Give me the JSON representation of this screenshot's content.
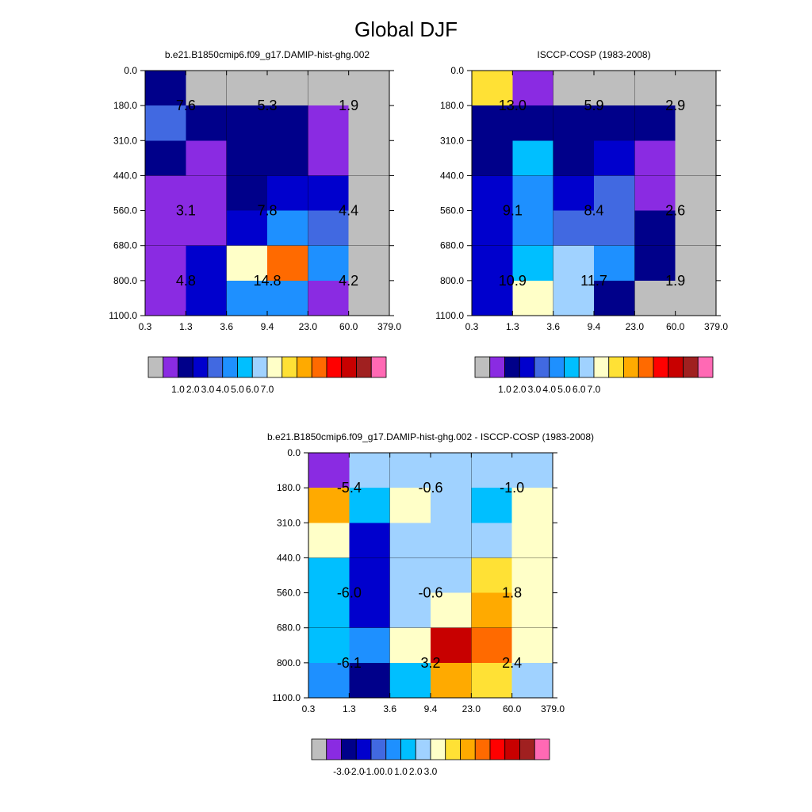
{
  "figure": {
    "title": "Global DJF"
  },
  "chart_data": [
    {
      "type": "heatmap",
      "title": "b.e21.B1850cmip6.f09_g17.DAMIP-hist-ghg.002",
      "x_tick_labels": [
        "0.3",
        "1.3",
        "3.6",
        "9.4",
        "23.0",
        "60.0",
        "379.0"
      ],
      "y_tick_labels": [
        "0.0",
        "180.0",
        "310.0",
        "440.0",
        "560.0",
        "680.0",
        "800.0",
        "1100.0"
      ],
      "cells": [
        [
          "#00008a",
          "#bebebe",
          "#bebebe",
          "#bebebe",
          "#bebebe",
          "#bebebe"
        ],
        [
          "#4169e1",
          "#00008a",
          "#00008a",
          "#00008a",
          "#8a2be2",
          "#bebebe"
        ],
        [
          "#00008a",
          "#8a2be2",
          "#00008a",
          "#00008a",
          "#8a2be2",
          "#bebebe"
        ],
        [
          "#8a2be2",
          "#8a2be2",
          "#00008a",
          "#0000cd",
          "#0000cd",
          "#bebebe"
        ],
        [
          "#8a2be2",
          "#8a2be2",
          "#0000cd",
          "#1e90ff",
          "#4169e1",
          "#bebebe"
        ],
        [
          "#8a2be2",
          "#0000cd",
          "#ffffc8",
          "#ff6a00",
          "#1e90ff",
          "#bebebe"
        ],
        [
          "#8a2be2",
          "#0000cd",
          "#1e90ff",
          "#1e90ff",
          "#8a2be2",
          "#bebebe"
        ]
      ],
      "annotations": [
        {
          "text": "7.6",
          "x": 1.3,
          "y": 180.0
        },
        {
          "text": "5.3",
          "x": 9.4,
          "y": 180.0
        },
        {
          "text": "1.9",
          "x": 60.0,
          "y": 180.0
        },
        {
          "text": "3.1",
          "x": 1.3,
          "y": 560.0
        },
        {
          "text": "7.8",
          "x": 9.4,
          "y": 560.0
        },
        {
          "text": "4.4",
          "x": 60.0,
          "y": 560.0
        },
        {
          "text": "4.8",
          "x": 1.3,
          "y": 800.0
        },
        {
          "text": "14.8",
          "x": 9.4,
          "y": 800.0
        },
        {
          "text": "4.2",
          "x": 60.0,
          "y": 800.0
        }
      ],
      "colorbar": {
        "colors": [
          "#bebebe",
          "#8a2be2",
          "#00008a",
          "#0000cd",
          "#4169e1",
          "#1e90ff",
          "#00bfff",
          "#a0d2ff",
          "#ffffc8",
          "#ffe135",
          "#ffaa00",
          "#ff6a00",
          "#ff0000",
          "#c80000",
          "#a02020",
          "#ff69b4"
        ],
        "labels": [
          "1.0",
          "2.0",
          "3.0",
          "4.0",
          "5.0",
          "6.0",
          "7.0"
        ]
      }
    },
    {
      "type": "heatmap",
      "title": "ISCCP-COSP (1983-2008)",
      "x_tick_labels": [
        "0.3",
        "1.3",
        "3.6",
        "9.4",
        "23.0",
        "60.0",
        "379.0"
      ],
      "y_tick_labels": [
        "0.0",
        "180.0",
        "310.0",
        "440.0",
        "560.0",
        "680.0",
        "800.0",
        "1100.0"
      ],
      "cells": [
        [
          "#ffe135",
          "#8a2be2",
          "#bebebe",
          "#bebebe",
          "#bebebe",
          "#bebebe"
        ],
        [
          "#00008a",
          "#00008a",
          "#00008a",
          "#00008a",
          "#00008a",
          "#bebebe"
        ],
        [
          "#00008a",
          "#00bfff",
          "#00008a",
          "#0000cd",
          "#8a2be2",
          "#bebebe"
        ],
        [
          "#0000cd",
          "#1e90ff",
          "#0000cd",
          "#4169e1",
          "#8a2be2",
          "#bebebe"
        ],
        [
          "#0000cd",
          "#1e90ff",
          "#4169e1",
          "#4169e1",
          "#00008a",
          "#bebebe"
        ],
        [
          "#0000cd",
          "#00bfff",
          "#a0d2ff",
          "#1e90ff",
          "#00008a",
          "#bebebe"
        ],
        [
          "#0000cd",
          "#ffffc8",
          "#a0d2ff",
          "#00008a",
          "#bebebe",
          "#bebebe"
        ]
      ],
      "annotations": [
        {
          "text": "13.0",
          "x": 1.3,
          "y": 180.0
        },
        {
          "text": "5.9",
          "x": 9.4,
          "y": 180.0
        },
        {
          "text": "2.9",
          "x": 60.0,
          "y": 180.0
        },
        {
          "text": "9.1",
          "x": 1.3,
          "y": 560.0
        },
        {
          "text": "8.4",
          "x": 9.4,
          "y": 560.0
        },
        {
          "text": "2.6",
          "x": 60.0,
          "y": 560.0
        },
        {
          "text": "10.9",
          "x": 1.3,
          "y": 800.0
        },
        {
          "text": "11.7",
          "x": 9.4,
          "y": 800.0
        },
        {
          "text": "1.9",
          "x": 60.0,
          "y": 800.0
        }
      ],
      "colorbar": {
        "colors": [
          "#bebebe",
          "#8a2be2",
          "#00008a",
          "#0000cd",
          "#4169e1",
          "#1e90ff",
          "#00bfff",
          "#a0d2ff",
          "#ffffc8",
          "#ffe135",
          "#ffaa00",
          "#ff6a00",
          "#ff0000",
          "#c80000",
          "#a02020",
          "#ff69b4"
        ],
        "labels": [
          "1.0",
          "2.0",
          "3.0",
          "4.0",
          "5.0",
          "6.0",
          "7.0"
        ]
      }
    },
    {
      "type": "heatmap",
      "title": "b.e21.B1850cmip6.f09_g17.DAMIP-hist-ghg.002 - ISCCP-COSP (1983-2008)",
      "x_tick_labels": [
        "0.3",
        "1.3",
        "3.6",
        "9.4",
        "23.0",
        "60.0",
        "379.0"
      ],
      "y_tick_labels": [
        "0.0",
        "180.0",
        "310.0",
        "440.0",
        "560.0",
        "680.0",
        "800.0",
        "1100.0"
      ],
      "cells": [
        [
          "#8a2be2",
          "#a0d2ff",
          "#a0d2ff",
          "#a0d2ff",
          "#a0d2ff",
          "#a0d2ff"
        ],
        [
          "#ffaa00",
          "#00bfff",
          "#ffffc8",
          "#a0d2ff",
          "#00bfff",
          "#ffffc8"
        ],
        [
          "#ffffc8",
          "#0000cd",
          "#a0d2ff",
          "#a0d2ff",
          "#a0d2ff",
          "#ffffc8"
        ],
        [
          "#00bfff",
          "#0000cd",
          "#a0d2ff",
          "#a0d2ff",
          "#ffe135",
          "#ffffc8"
        ],
        [
          "#00bfff",
          "#0000cd",
          "#a0d2ff",
          "#ffffc8",
          "#ffaa00",
          "#ffffc8"
        ],
        [
          "#00bfff",
          "#1e90ff",
          "#ffffc8",
          "#c80000",
          "#ff6a00",
          "#ffffc8"
        ],
        [
          "#1e90ff",
          "#00008a",
          "#00bfff",
          "#ffaa00",
          "#ffe135",
          "#a0d2ff"
        ]
      ],
      "annotations": [
        {
          "text": "-5.4",
          "x": 1.3,
          "y": 180.0
        },
        {
          "text": "-0.6",
          "x": 9.4,
          "y": 180.0
        },
        {
          "text": "-1.0",
          "x": 60.0,
          "y": 180.0
        },
        {
          "text": "-6.0",
          "x": 1.3,
          "y": 560.0
        },
        {
          "text": "-0.6",
          "x": 9.4,
          "y": 560.0
        },
        {
          "text": "1.8",
          "x": 60.0,
          "y": 560.0
        },
        {
          "text": "-6.1",
          "x": 1.3,
          "y": 800.0
        },
        {
          "text": "3.2",
          "x": 9.4,
          "y": 800.0
        },
        {
          "text": "2.4",
          "x": 60.0,
          "y": 800.0
        }
      ],
      "colorbar": {
        "colors": [
          "#bebebe",
          "#8a2be2",
          "#00008a",
          "#0000cd",
          "#4169e1",
          "#1e90ff",
          "#00bfff",
          "#a0d2ff",
          "#ffffc8",
          "#ffe135",
          "#ffaa00",
          "#ff6a00",
          "#ff0000",
          "#c80000",
          "#a02020",
          "#ff69b4"
        ],
        "labels": [
          "-3.0",
          "-2.0",
          "-1.0",
          "0.0",
          "1.0",
          "2.0",
          "3.0"
        ]
      }
    }
  ]
}
